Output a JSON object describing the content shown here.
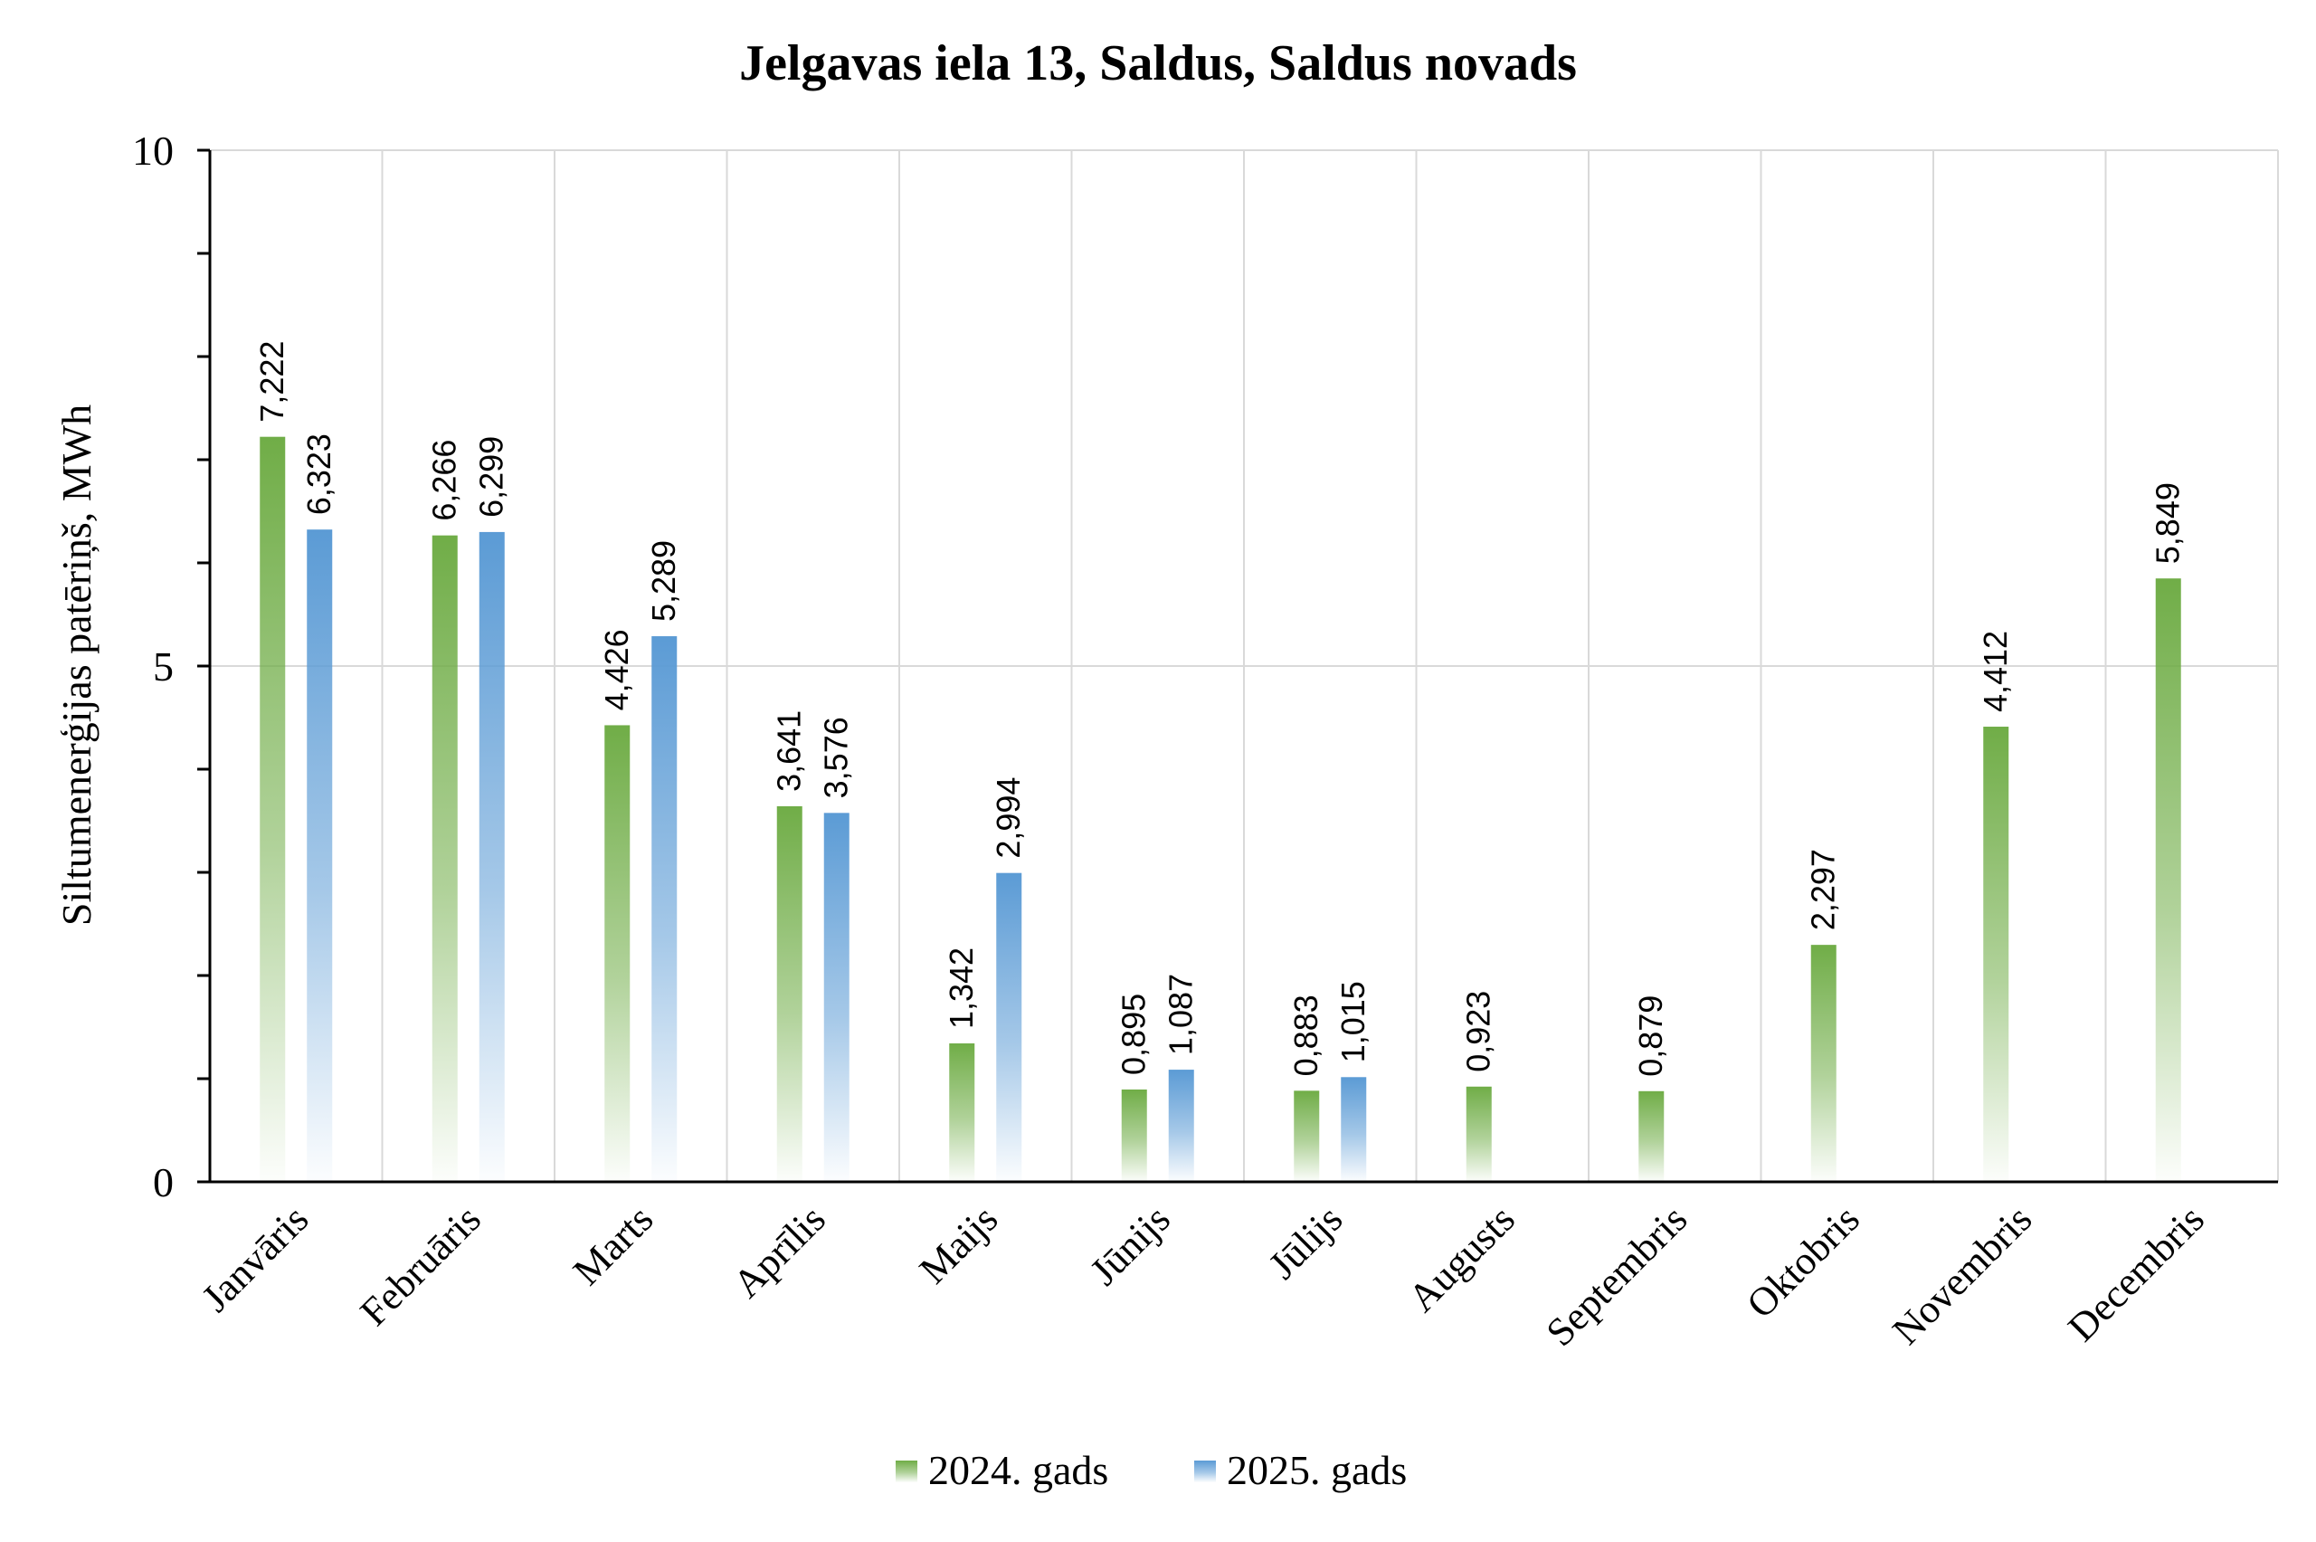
{
  "chart_data": {
    "type": "bar",
    "title": "Jelgavas iela 13, Saldus, Saldus novads",
    "ylabel": "Siltumenerģijas patēriņš, MWh",
    "xlabel": "",
    "ylim": [
      0,
      10
    ],
    "yticks": [
      {
        "value": 0,
        "label": "0"
      },
      {
        "value": 5,
        "label": "5"
      },
      {
        "value": 10,
        "label": "10"
      }
    ],
    "minor_tick_step": 1,
    "grid": true,
    "legend_position": "bottom",
    "categories": [
      "Janvāris",
      "Februāris",
      "Marts",
      "Aprīlis",
      "Maijs",
      "Jūnijs",
      "Jūlijs",
      "Augusts",
      "Septembris",
      "Oktobris",
      "Novembris",
      "Decembris"
    ],
    "series": [
      {
        "name": "2024. gads",
        "color": "#70ad47",
        "values": [
          7.222,
          6.266,
          4.426,
          3.641,
          1.342,
          0.895,
          0.883,
          0.923,
          0.879,
          2.297,
          4.412,
          5.849
        ],
        "labels": [
          "7,222",
          "6,266",
          "4,426",
          "3,641",
          "1,342",
          "0,895",
          "0,883",
          "0,923",
          "0,879",
          "2,297",
          "4,412",
          "5,849"
        ]
      },
      {
        "name": "2025. gads",
        "color": "#5b9bd5",
        "values": [
          6.323,
          6.299,
          5.289,
          3.576,
          2.994,
          1.087,
          1.015,
          null,
          null,
          null,
          null,
          null
        ],
        "labels": [
          "6,323",
          "6,299",
          "5,289",
          "3,576",
          "2,994",
          "1,087",
          "1,015",
          null,
          null,
          null,
          null,
          null
        ]
      }
    ]
  }
}
